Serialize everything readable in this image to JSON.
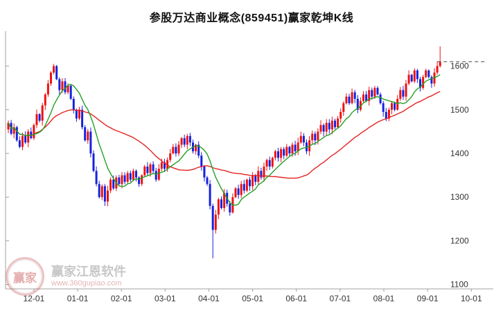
{
  "watermark": {
    "logo_text": "赢家",
    "name": "赢家江恩软件",
    "url": "www.360gupiao.com"
  },
  "chart_data": {
    "type": "candlestick",
    "title": "参股万达商业概念(859451)赢家乾坤K线",
    "xlabel": "",
    "ylabel": "",
    "y_ticks": [
      1600,
      1500,
      1400,
      1300,
      1200,
      1100
    ],
    "ylim": [
      1090,
      1680
    ],
    "x_ticks": [
      "12-01",
      "01-01",
      "02-01",
      "03-01",
      "04-01",
      "05-01",
      "06-01",
      "07-01",
      "08-01",
      "09-01",
      "10-01"
    ],
    "x_tick_indices": [
      9,
      24.4,
      39.8,
      55.2,
      70.6,
      86,
      101.4,
      116.8,
      132.2,
      147.6,
      163
    ],
    "grid": "off",
    "legend": "none",
    "first_open": 1455,
    "closes": [
      1470,
      1445,
      1460,
      1430,
      1415,
      1440,
      1425,
      1450,
      1435,
      1465,
      1490,
      1475,
      1510,
      1535,
      1560,
      1585,
      1600,
      1570,
      1545,
      1565,
      1540,
      1555,
      1525,
      1500,
      1480,
      1500,
      1460,
      1430,
      1450,
      1400,
      1360,
      1330,
      1300,
      1325,
      1290,
      1315,
      1340,
      1320,
      1345,
      1330,
      1350,
      1335,
      1355,
      1340,
      1360,
      1345,
      1330,
      1350,
      1370,
      1355,
      1375,
      1360,
      1340,
      1365,
      1380,
      1365,
      1385,
      1400,
      1415,
      1400,
      1420,
      1435,
      1420,
      1440,
      1425,
      1405,
      1420,
      1395,
      1370,
      1345,
      1330,
      1280,
      1225,
      1260,
      1295,
      1275,
      1310,
      1285,
      1265,
      1300,
      1320,
      1305,
      1330,
      1315,
      1340,
      1325,
      1350,
      1335,
      1360,
      1345,
      1370,
      1385,
      1370,
      1390,
      1405,
      1390,
      1410,
      1395,
      1415,
      1400,
      1420,
      1405,
      1425,
      1440,
      1425,
      1405,
      1430,
      1445,
      1430,
      1450,
      1465,
      1450,
      1470,
      1455,
      1475,
      1460,
      1480,
      1495,
      1515,
      1530,
      1515,
      1540,
      1525,
      1500,
      1520,
      1535,
      1520,
      1545,
      1530,
      1550,
      1535,
      1515,
      1495,
      1480,
      1500,
      1515,
      1500,
      1525,
      1545,
      1530,
      1560,
      1580,
      1565,
      1590,
      1570,
      1550,
      1575,
      1590,
      1575,
      1560,
      1585,
      1600,
      1610
    ],
    "overrides": {
      "crash_index": 72,
      "crash_low": 1160,
      "last_high": 1645
    },
    "dashed_level": 1610,
    "ma_short_window": 10,
    "ma_long_window": 35,
    "colors": {
      "up": "#ee1111",
      "down": "#1522dd",
      "ma_short": "#22a022",
      "ma_long": "#e42222",
      "dashed": "#444444",
      "axis": "#a0a0a0",
      "label": "#333333"
    }
  }
}
